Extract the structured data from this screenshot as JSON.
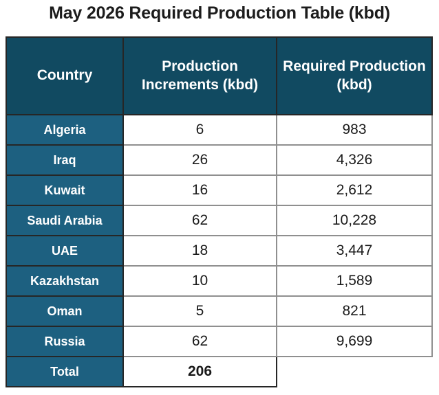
{
  "title": "May 2026 Required Production Table (kbd)",
  "table": {
    "columns": [
      "Country",
      "Production Increments (kbd)",
      "Required Production (kbd)"
    ],
    "rows": [
      {
        "country": "Algeria",
        "increment": "6",
        "required": "983"
      },
      {
        "country": "Iraq",
        "increment": "26",
        "required": "4,326"
      },
      {
        "country": "Kuwait",
        "increment": "16",
        "required": "2,612"
      },
      {
        "country": "Saudi Arabia",
        "increment": "62",
        "required": "10,228"
      },
      {
        "country": "UAE",
        "increment": "18",
        "required": "3,447"
      },
      {
        "country": "Kazakhstan",
        "increment": "10",
        "required": "1,589"
      },
      {
        "country": "Oman",
        "increment": "5",
        "required": "821"
      },
      {
        "country": "Russia",
        "increment": "62",
        "required": "9,699"
      }
    ],
    "total": {
      "label": "Total",
      "increment": "206",
      "required": ""
    }
  },
  "colors": {
    "header_bg": "#114a61",
    "country_bg": "#1d6080",
    "dark_border": "#262626",
    "gray_border": "#8f8f8f",
    "header_text": "#ffffff",
    "number_text": "#1a1a1a"
  },
  "chart_data": {
    "type": "table",
    "title": "May 2026 Required Production Table (kbd)",
    "columns": [
      "Country",
      "Production Increments (kbd)",
      "Required Production (kbd)"
    ],
    "rows": [
      [
        "Algeria",
        6,
        983
      ],
      [
        "Iraq",
        26,
        4326
      ],
      [
        "Kuwait",
        16,
        2612
      ],
      [
        "Saudi Arabia",
        62,
        10228
      ],
      [
        "UAE",
        18,
        3447
      ],
      [
        "Kazakhstan",
        10,
        1589
      ],
      [
        "Oman",
        5,
        821
      ],
      [
        "Russia",
        62,
        9699
      ],
      [
        "Total",
        206,
        null
      ]
    ]
  }
}
